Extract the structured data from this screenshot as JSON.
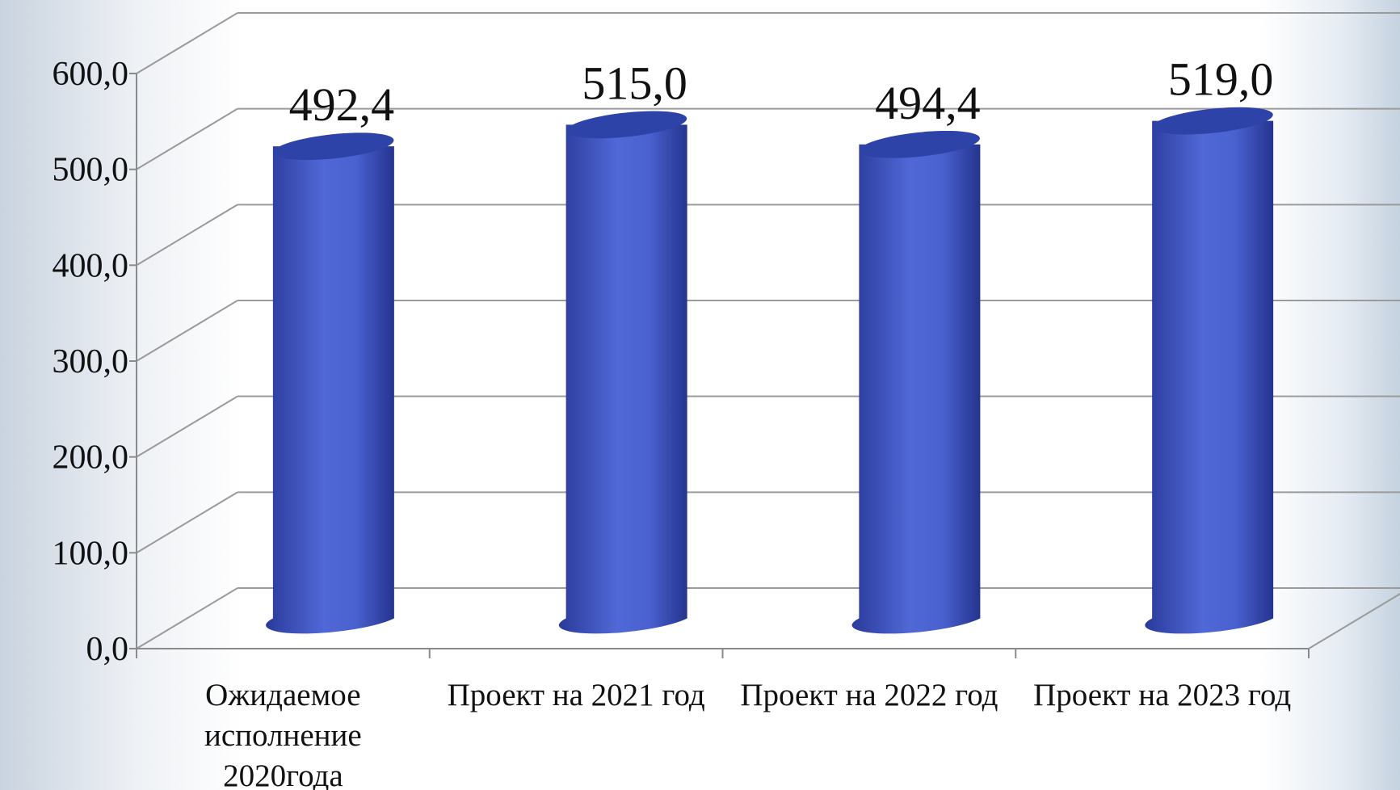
{
  "chart_data": {
    "type": "bar",
    "categories": [
      "Ожидаемое исполнение 2020года",
      "Проект на 2021 год",
      "Проект на 2022 год",
      "Проект на 2023 год"
    ],
    "values": [
      492.4,
      515.0,
      494.4,
      519.0
    ],
    "value_labels": [
      "492,4",
      "515,0",
      "494,4",
      "519,0"
    ],
    "color": "#3f56c4",
    "ylim": [
      0,
      600
    ],
    "yticks": [
      {
        "value": 0,
        "label": "0,0"
      },
      {
        "value": 100,
        "label": "100,0"
      },
      {
        "value": 200,
        "label": "200,0"
      },
      {
        "value": 300,
        "label": "300,0"
      },
      {
        "value": 400,
        "label": "400,0"
      },
      {
        "value": 500,
        "label": "500,0"
      },
      {
        "value": 600,
        "label": "600,0"
      }
    ],
    "grid": true
  }
}
